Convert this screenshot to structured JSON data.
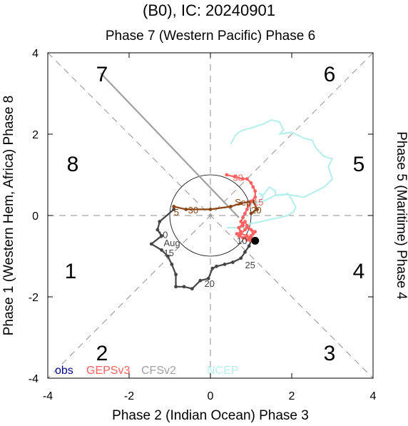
{
  "chart_data": {
    "type": "line",
    "title": "(B0), IC: 20240901",
    "top_label": "Phase 7 (Western Pacific) Phase 6",
    "xlabel": "Phase 2 (Indian Ocean) Phase 3",
    "ylabel_left": "Phase 1 (Western Hem, Africa) Phase 8",
    "ylabel_right": "Phase 5 (Maritime) Phase 4",
    "xlim": [
      -4,
      4
    ],
    "ylim": [
      -4,
      4
    ],
    "x_ticks": [
      "-4",
      "-2",
      "0",
      "2",
      "4"
    ],
    "y_ticks": [
      "4",
      "2",
      "0",
      "-2",
      "-4"
    ],
    "phase_numbers": [
      "1",
      "2",
      "3",
      "4",
      "5",
      "6",
      "7",
      "8"
    ],
    "colors": {
      "obs": "#00008b",
      "GEPSv3": "#ff6060",
      "CFSv2": "#a0a0a0",
      "NCEP": "#b8f0ec",
      "dark_history": "#444444",
      "brown_history": "#8b4513"
    },
    "legend": [
      "obs",
      "GEPSv3",
      "CFSv2",
      "NCEP"
    ],
    "series": [
      {
        "name": "",
        "color": "#444444",
        "x": [
          -0.9,
          -1.25,
          -1.3,
          -1.2,
          -1.45,
          -1.2,
          -1.05,
          -0.95,
          -0.85,
          -0.85,
          -0.65,
          -0.45,
          -0.25,
          -0.05,
          0.05,
          0.15,
          0.35,
          0.55,
          0.75,
          0.85,
          0.95,
          1.0
        ],
        "y": [
          0.15,
          -0.15,
          -0.35,
          -0.5,
          -0.7,
          -0.85,
          -1.0,
          -1.2,
          -1.45,
          -1.75,
          -1.75,
          -1.8,
          -1.6,
          -1.55,
          -1.3,
          -1.25,
          -1.2,
          -1.15,
          -1.05,
          -0.9,
          -0.75,
          -0.62
        ]
      },
      {
        "name": "",
        "color": "#8b4513",
        "x": [
          -0.9,
          -0.6,
          0.0,
          0.5,
          0.75,
          1.05,
          1.15,
          1.0
        ],
        "y": [
          0.22,
          0.15,
          0.15,
          0.22,
          0.3,
          0.35,
          0.15,
          0.05
        ]
      },
      {
        "name": "",
        "color": "#a0a0a0",
        "x": [
          -2.7,
          0.7
        ],
        "y": [
          3.5,
          -0.05
        ]
      },
      {
        "name": "",
        "color": "#b8f0ec",
        "x": [
          0.5,
          0.6,
          0.7,
          0.8,
          1.0,
          1.3,
          1.5,
          1.7,
          1.8,
          1.7,
          2.0,
          2.3,
          2.5,
          2.6,
          2.8,
          3.0,
          2.9,
          3.0,
          2.8,
          2.6,
          2.4,
          2.3,
          2.0,
          1.8,
          1.6,
          1.5,
          1.3,
          1.05,
          0.95,
          1.0,
          1.2,
          1.3,
          1.2,
          1.3,
          1.45,
          1.6,
          1.6,
          1.8,
          1.9,
          2.0,
          2.1,
          2.05,
          1.9,
          1.7,
          1.45,
          1.25,
          1.0,
          0.85,
          0.95,
          0.6,
          0.4
        ],
        "y": [
          1.75,
          1.95,
          2.05,
          2.1,
          2.15,
          2.25,
          2.35,
          2.3,
          2.1,
          2.0,
          2.05,
          1.9,
          1.85,
          1.65,
          1.45,
          1.4,
          1.2,
          0.9,
          0.7,
          0.6,
          0.5,
          0.45,
          0.5,
          0.52,
          0.5,
          0.45,
          0.35,
          0.3,
          0.2,
          0.3,
          0.35,
          0.45,
          0.55,
          0.5,
          0.7,
          0.6,
          0.5,
          0.5,
          0.55,
          0.4,
          0.2,
          0.1,
          0.0,
          -0.05,
          -0.1,
          -0.15,
          -0.2,
          -0.25,
          -0.3,
          -0.3,
          -0.3
        ]
      },
      {
        "name": "",
        "color": "#ff6060",
        "x": [
          0.4,
          0.6,
          0.8,
          0.9,
          1.0,
          1.05,
          1.1,
          1.1,
          1.0,
          0.95,
          0.9,
          0.85,
          0.8,
          0.75,
          0.8,
          0.7,
          0.75,
          0.65,
          0.7,
          0.85,
          0.9,
          1.0,
          1.05,
          1.0,
          0.9,
          0.85,
          0.8,
          0.7,
          0.75,
          0.9,
          0.95,
          1.0,
          1.1,
          0.9,
          0.85,
          0.7,
          0.8,
          0.95,
          1.0
        ],
        "y": [
          1.0,
          0.95,
          0.9,
          0.9,
          0.8,
          0.7,
          0.6,
          0.45,
          0.35,
          0.25,
          0.15,
          0.05,
          -0.05,
          -0.15,
          -0.25,
          -0.3,
          -0.4,
          -0.45,
          -0.5,
          -0.55,
          -0.6,
          -0.55,
          -0.45,
          -0.35,
          -0.25,
          -0.15,
          -0.2,
          -0.3,
          -0.45,
          -0.5,
          -0.55,
          -0.5,
          -0.4,
          -0.3,
          -0.35,
          -0.5,
          -0.55,
          -0.6,
          -0.62
        ]
      }
    ],
    "day_labels": [
      {
        "text": "10",
        "x": -1.3,
        "y": -0.55,
        "color": "#444444"
      },
      {
        "text": "Aug",
        "x": -1.15,
        "y": -0.75,
        "color": "#444444"
      },
      {
        "text": "15",
        "x": -1.15,
        "y": -1.0,
        "color": "#444444"
      },
      {
        "text": "20",
        "x": -0.15,
        "y": -1.75,
        "color": "#444444"
      },
      {
        "text": "25",
        "x": 0.85,
        "y": -1.3,
        "color": "#444444"
      },
      {
        "text": "30",
        "x": -0.55,
        "y": 0.05,
        "color": "#8b4513"
      },
      {
        "text": "5",
        "x": -0.9,
        "y": 0.0,
        "color": "#8b4513"
      },
      {
        "text": "Sep",
        "x": 0.6,
        "y": 0.25,
        "color": "#8b4513"
      },
      {
        "text": "20",
        "x": 1.0,
        "y": 0.05,
        "color": "#8b4513"
      },
      {
        "text": "30",
        "x": 0.55,
        "y": 0.85,
        "color": "#ff6060"
      },
      {
        "text": "15",
        "x": 1.05,
        "y": 0.25,
        "color": "#ff6060"
      },
      {
        "text": "10",
        "x": 0.65,
        "y": -0.7,
        "color": "#444444"
      }
    ],
    "end_marker": {
      "x": 1.1,
      "y": -0.62,
      "color": "#000000"
    }
  }
}
